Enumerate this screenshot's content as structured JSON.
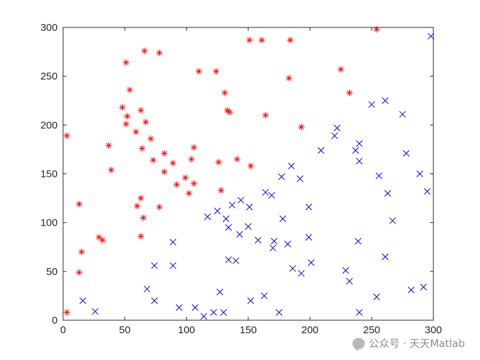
{
  "chart_data": {
    "type": "scatter",
    "title": "",
    "xlabel": "",
    "ylabel": "",
    "xlim": [
      0,
      300
    ],
    "ylim": [
      0,
      300
    ],
    "xticks": [
      0,
      50,
      100,
      150,
      200,
      250,
      300
    ],
    "yticks": [
      0,
      50,
      100,
      150,
      200,
      250,
      300
    ],
    "grid": false,
    "series": [
      {
        "marker": "asterisk",
        "color": "#ff0000",
        "points": [
          [
            3,
            8
          ],
          [
            3,
            189
          ],
          [
            13,
            49
          ],
          [
            13,
            119
          ],
          [
            15,
            70
          ],
          [
            29,
            85
          ],
          [
            32,
            82
          ],
          [
            37,
            179
          ],
          [
            39,
            154
          ],
          [
            48,
            218
          ],
          [
            51,
            201
          ],
          [
            51,
            264
          ],
          [
            52,
            209
          ],
          [
            54,
            236
          ],
          [
            59,
            193
          ],
          [
            60,
            117
          ],
          [
            63,
            215
          ],
          [
            63,
            125
          ],
          [
            63,
            86
          ],
          [
            64,
            176
          ],
          [
            65,
            105
          ],
          [
            66,
            276
          ],
          [
            67,
            203
          ],
          [
            71,
            186
          ],
          [
            73,
            164
          ],
          [
            78,
            116
          ],
          [
            78,
            274
          ],
          [
            82,
            152
          ],
          [
            82,
            171
          ],
          [
            89,
            161
          ],
          [
            92,
            139
          ],
          [
            99,
            146
          ],
          [
            102,
            130
          ],
          [
            104,
            165
          ],
          [
            106,
            177
          ],
          [
            106,
            140
          ],
          [
            110,
            255
          ],
          [
            124,
            255
          ],
          [
            126,
            162
          ],
          [
            128,
            133
          ],
          [
            131,
            233
          ],
          [
            133,
            215
          ],
          [
            135,
            213
          ],
          [
            141,
            165
          ],
          [
            151,
            287
          ],
          [
            152,
            158
          ],
          [
            161,
            287
          ],
          [
            164,
            210
          ],
          [
            183,
            248
          ],
          [
            184,
            287
          ],
          [
            193,
            198
          ],
          [
            225,
            257
          ],
          [
            232,
            233
          ],
          [
            254,
            298
          ]
        ]
      },
      {
        "marker": "x",
        "color": "#0000ff",
        "points": [
          [
            16,
            20
          ],
          [
            26,
            9
          ],
          [
            68,
            32
          ],
          [
            74,
            56
          ],
          [
            74,
            20
          ],
          [
            89,
            80
          ],
          [
            89,
            56
          ],
          [
            94,
            13
          ],
          [
            107,
            13
          ],
          [
            114,
            4
          ],
          [
            117,
            106
          ],
          [
            122,
            8
          ],
          [
            125,
            112
          ],
          [
            127,
            29
          ],
          [
            130,
            8
          ],
          [
            132,
            104
          ],
          [
            134,
            95
          ],
          [
            134,
            62
          ],
          [
            137,
            118
          ],
          [
            140,
            61
          ],
          [
            143,
            88
          ],
          [
            144,
            123
          ],
          [
            150,
            96
          ],
          [
            151,
            116
          ],
          [
            152,
            20
          ],
          [
            158,
            82
          ],
          [
            163,
            25
          ],
          [
            164,
            131
          ],
          [
            169,
            128
          ],
          [
            170,
            74
          ],
          [
            171,
            81
          ],
          [
            175,
            8
          ],
          [
            177,
            147
          ],
          [
            178,
            104
          ],
          [
            182,
            78
          ],
          [
            185,
            158
          ],
          [
            186,
            53
          ],
          [
            192,
            145
          ],
          [
            193,
            48
          ],
          [
            199,
            116
          ],
          [
            199,
            85
          ],
          [
            201,
            59
          ],
          [
            209,
            174
          ],
          [
            220,
            189
          ],
          [
            222,
            197
          ],
          [
            229,
            51
          ],
          [
            232,
            40
          ],
          [
            237,
            174
          ],
          [
            239,
            81
          ],
          [
            240,
            163
          ],
          [
            240,
            181
          ],
          [
            240,
            8
          ],
          [
            250,
            221
          ],
          [
            254,
            24
          ],
          [
            256,
            148
          ],
          [
            261,
            225
          ],
          [
            261,
            65
          ],
          [
            263,
            130
          ],
          [
            267,
            102
          ],
          [
            275,
            211
          ],
          [
            278,
            171
          ],
          [
            282,
            31
          ],
          [
            289,
            150
          ],
          [
            292,
            34
          ],
          [
            295,
            132
          ],
          [
            298,
            291
          ]
        ]
      }
    ]
  },
  "watermark": {
    "icon": "wechat-icon",
    "text": "公众号 · 天天Matlab"
  }
}
